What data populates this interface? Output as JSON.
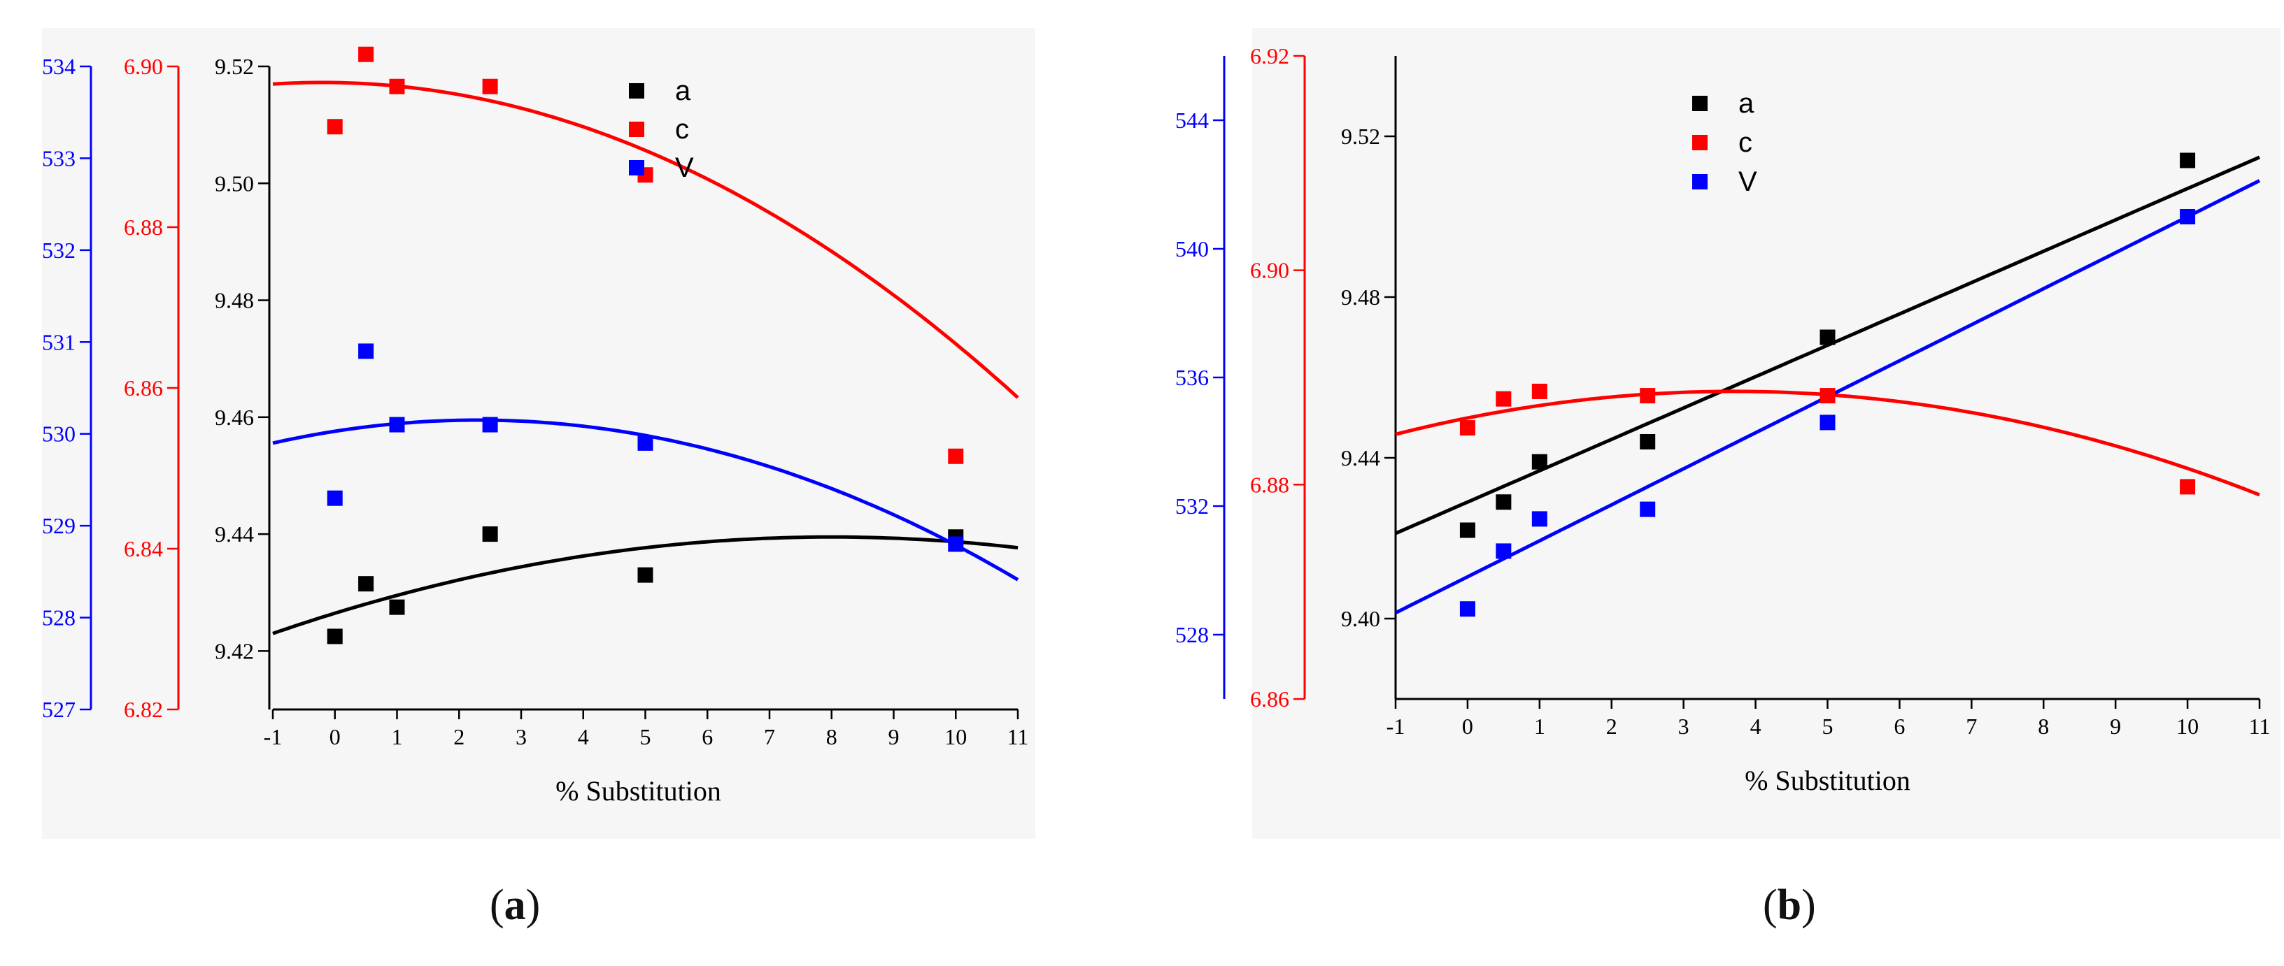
{
  "figure_captions": {
    "a": "a",
    "b": "b"
  },
  "colors": {
    "a": "#000000",
    "c": "#ff0000",
    "V": "#0000ff",
    "axis": "#000000"
  },
  "chart_data": [
    {
      "id": "a",
      "type": "scatter",
      "xlabel": "% Substitution",
      "xlim": [
        -1,
        11
      ],
      "xticks": [
        "-1",
        "0",
        "1",
        "2",
        "3",
        "4",
        "5",
        "6",
        "7",
        "8",
        "9",
        "10",
        "11"
      ],
      "axes": {
        "a": {
          "lim": [
            9.41,
            9.52
          ],
          "ticks": [
            "9.42",
            "9.44",
            "9.46",
            "9.48",
            "9.50",
            "9.52"
          ]
        },
        "c": {
          "lim": [
            6.82,
            6.9
          ],
          "ticks": [
            "6.82",
            "6.84",
            "6.86",
            "6.88",
            "6.90"
          ]
        },
        "V": {
          "lim": [
            527,
            534
          ],
          "ticks": [
            "527",
            "528",
            "529",
            "530",
            "531",
            "532",
            "533",
            "534"
          ]
        }
      },
      "legend": [
        "a",
        "c",
        "V"
      ],
      "series": [
        {
          "name": "a",
          "x": [
            0,
            0.5,
            1,
            2.5,
            5,
            10
          ],
          "y": [
            9.4225,
            9.4315,
            9.4275,
            9.44,
            9.433,
            9.4395
          ],
          "fit": {
            "type": "quadratic",
            "peak_x": 8.0,
            "peak_y": 9.4395,
            "y_at_xmin": 9.423
          }
        },
        {
          "name": "c",
          "x": [
            0,
            0.5,
            1,
            2.5,
            5,
            10
          ],
          "y": [
            6.8925,
            6.9015,
            6.8975,
            6.8975,
            6.8865,
            6.8515
          ],
          "fit": {
            "type": "quadratic",
            "peak_x": -0.2,
            "peak_y": 6.898,
            "y_at_xmin": 6.8978
          }
        },
        {
          "name": "V",
          "x": [
            0,
            0.5,
            1,
            2.5,
            5,
            10
          ],
          "y": [
            529.3,
            530.9,
            530.1,
            530.1,
            529.9,
            528.8
          ],
          "fit": {
            "type": "quadratic",
            "peak_x": 2.3,
            "peak_y": 530.15,
            "y_at_xmin": 529.9
          }
        }
      ]
    },
    {
      "id": "b",
      "type": "scatter",
      "xlabel": "% Substitution",
      "xlim": [
        -1,
        11
      ],
      "xticks": [
        "-1",
        "0",
        "1",
        "2",
        "3",
        "4",
        "5",
        "6",
        "7",
        "8",
        "9",
        "10",
        "11"
      ],
      "axes": {
        "a": {
          "lim": [
            9.38,
            9.54
          ],
          "ticks": [
            "9.40",
            "9.44",
            "9.48",
            "9.52"
          ]
        },
        "c": {
          "lim": [
            6.86,
            6.92
          ],
          "ticks": [
            "6.86",
            "6.88",
            "6.90",
            "6.92"
          ]
        },
        "V": {
          "lim": [
            526,
            546
          ],
          "ticks": [
            "528",
            "532",
            "536",
            "540",
            "544"
          ]
        }
      },
      "legend": [
        "a",
        "c",
        "V"
      ],
      "series": [
        {
          "name": "a",
          "x": [
            0,
            0.5,
            1,
            2.5,
            5,
            10
          ],
          "y": [
            9.422,
            9.429,
            9.439,
            9.444,
            9.47,
            9.514
          ],
          "fit": {
            "type": "linear",
            "intercept": 9.429,
            "slope": 0.0078
          }
        },
        {
          "name": "c",
          "x": [
            0,
            0.5,
            1,
            2.5,
            5,
            10
          ],
          "y": [
            6.8853,
            6.888,
            6.8887,
            6.8883,
            6.8883,
            6.8798
          ],
          "fit": {
            "type": "quadratic",
            "peak_x": 3.7,
            "peak_y": 6.8887,
            "y_at_xmin": 6.8847
          }
        },
        {
          "name": "V",
          "x": [
            0,
            0.5,
            1,
            2.5,
            5,
            10
          ],
          "y": [
            528.8,
            530.6,
            531.6,
            531.9,
            534.6,
            541.0
          ],
          "fit": {
            "type": "linear",
            "intercept": 529.8,
            "slope": 1.12
          }
        }
      ]
    }
  ]
}
